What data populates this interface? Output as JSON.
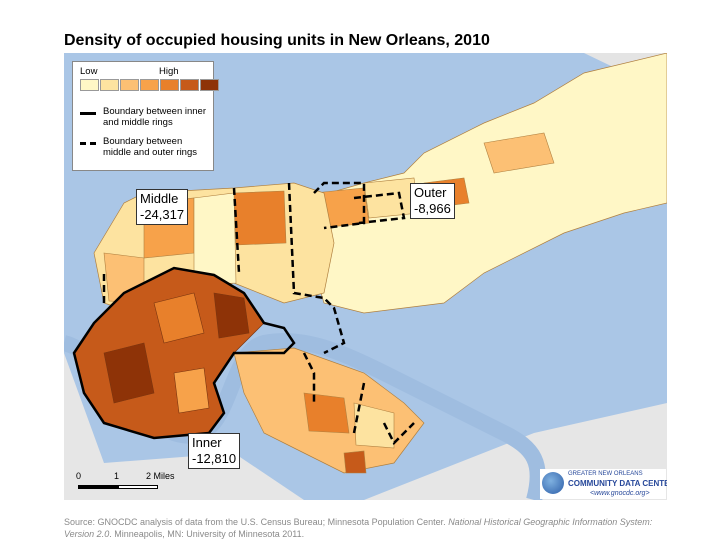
{
  "title": "Density of occupied housing units in New Orleans, 2010",
  "legend": {
    "low": "Low",
    "high": "High",
    "ramp_colors": [
      "#fff7c6",
      "#fde3a0",
      "#fcc074",
      "#f7a24a",
      "#e8802b",
      "#c65a1a",
      "#8e3307"
    ],
    "solid_line": "Boundary between inner and middle rings",
    "dashed_line": "Boundary between middle and outer rings"
  },
  "labels": {
    "middle": {
      "name": "Middle",
      "value": "-24,317"
    },
    "outer": {
      "name": "Outer",
      "value": "-8,966"
    },
    "inner": {
      "name": "Inner",
      "value": "-12,810"
    }
  },
  "scale": {
    "t0": "0",
    "t1": "1",
    "t2": "2 Miles"
  },
  "logo": {
    "line1": "GREATER NEW ORLEANS",
    "line2": "COMMUNITY DATA CENTER",
    "url": "<www.gnocdc.org>"
  },
  "source": {
    "text1": "Source: GNOCDC analysis of data from the U.S. Census Bureau; Minnesota Population Center. ",
    "italic": "National Historical Geographic Information System: Version 2.0",
    "text2": ". Minneapolis, MN: University of Minnesota 2011."
  },
  "colors": {
    "water": "#aac6e6",
    "land_other": "#e8e8e8",
    "boundary": "#000000"
  }
}
